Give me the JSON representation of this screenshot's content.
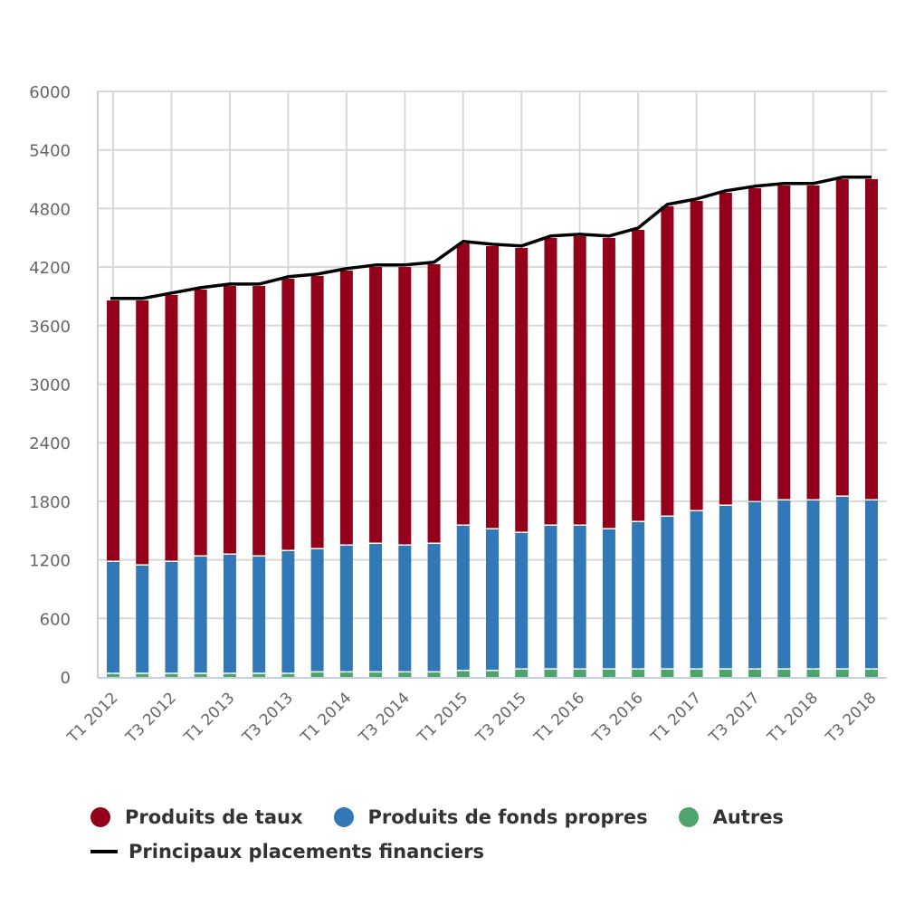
{
  "chart_data": {
    "type": "bar",
    "stacked": true,
    "title": "",
    "xlabel": "",
    "ylabel": "",
    "ylim": [
      0,
      6000
    ],
    "yticks": [
      "0",
      "600",
      "1200",
      "1800",
      "2400",
      "3000",
      "3600",
      "4200",
      "4800",
      "5400",
      "6000"
    ],
    "ytick_values": [
      0,
      600,
      1200,
      1800,
      2400,
      3000,
      3600,
      4200,
      4800,
      5400,
      6000
    ],
    "grid": true,
    "legend_position": "bottom",
    "categories": [
      "T1 2012",
      "T2 2012",
      "T3 2012",
      "T4 2012",
      "T1 2013",
      "T2 2013",
      "T3 2013",
      "T4 2013",
      "T1 2014",
      "T2 2014",
      "T3 2014",
      "T4 2014",
      "T1 2015",
      "T2 2015",
      "T3 2015",
      "T4 2015",
      "T1 2016",
      "T2 2016",
      "T3 2016",
      "T4 2016",
      "T1 2017",
      "T2 2017",
      "T3 2017",
      "T4 2017",
      "T1 2018",
      "T2 2018",
      "T3 2018"
    ],
    "xtick_labels": [
      "T1 2012",
      "T3 2012",
      "T1 2013",
      "T3 2013",
      "T1 2014",
      "T3 2014",
      "T1 2015",
      "T3 2015",
      "T1 2016",
      "T3 2016",
      "T1 2017",
      "T3 2017",
      "T1 2018",
      "T3 2018"
    ],
    "series": [
      {
        "name": "Autres",
        "type": "bar",
        "color": "#4ea46c",
        "values": [
          30,
          30,
          30,
          30,
          30,
          30,
          30,
          45,
          45,
          45,
          45,
          45,
          60,
          60,
          75,
          75,
          75,
          75,
          75,
          75,
          75,
          75,
          75,
          75,
          75,
          75,
          75
        ]
      },
      {
        "name": "Produits de fonds propres",
        "type": "bar",
        "color": "#3277b6",
        "values": [
          1148,
          1111,
          1148,
          1203,
          1222,
          1203,
          1259,
          1263,
          1300,
          1318,
          1300,
          1318,
          1489,
          1452,
          1400,
          1474,
          1474,
          1437,
          1511,
          1566,
          1622,
          1678,
          1715,
          1733,
          1733,
          1771,
          1733
        ]
      },
      {
        "name": "Produits de taux",
        "type": "bar",
        "color": "#930019",
        "values": [
          2680,
          2717,
          2736,
          2736,
          2754,
          2773,
          2792,
          2800,
          2819,
          2838,
          2856,
          2866,
          2893,
          2902,
          2921,
          2949,
          2967,
          2986,
          2995,
          3181,
          3181,
          3209,
          3218,
          3228,
          3228,
          3255,
          3293
        ]
      },
      {
        "name": "Principaux placements financiers",
        "type": "line",
        "color": "#000000",
        "values": [
          3878,
          3878,
          3934,
          3989,
          4026,
          4026,
          4101,
          4128,
          4184,
          4221,
          4221,
          4249,
          4462,
          4434,
          4416,
          4518,
          4536,
          4518,
          4601,
          4842,
          4898,
          4982,
          5028,
          5056,
          5056,
          5121,
          5121
        ]
      }
    ]
  },
  "legend": {
    "items": [
      {
        "label": "Produits de taux",
        "color": "#930019",
        "shape": "circle"
      },
      {
        "label": "Produits de fonds propres",
        "color": "#3277b6",
        "shape": "circle"
      },
      {
        "label": "Autres",
        "color": "#4ea46c",
        "shape": "circle"
      },
      {
        "label": "Principaux placements financiers",
        "color": "#000000",
        "shape": "line"
      }
    ]
  }
}
